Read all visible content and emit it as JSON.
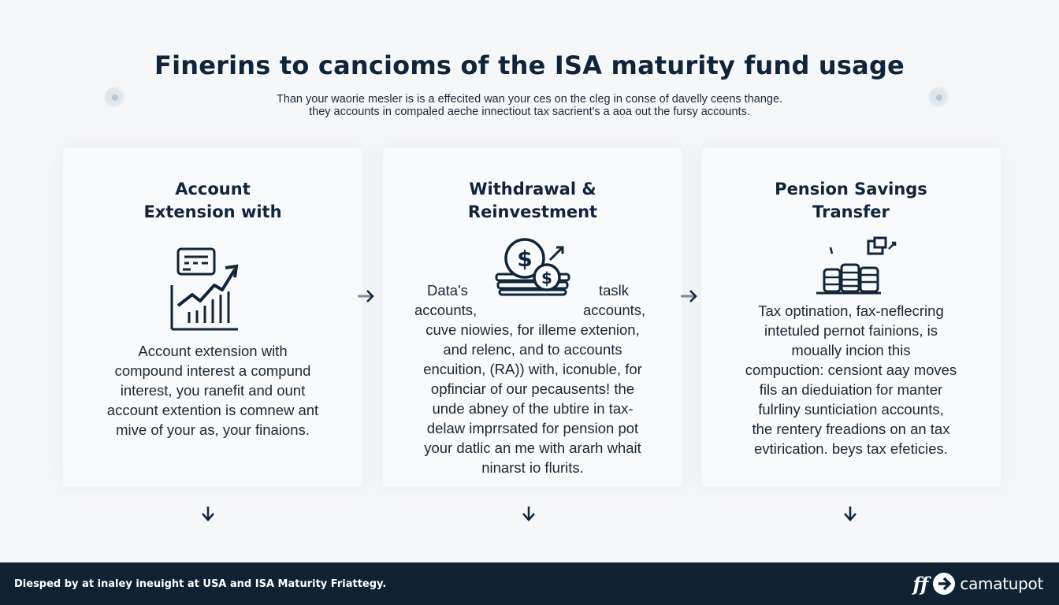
{
  "header": {
    "title": "Finerins to cancioms of the ISA maturity fund usage",
    "subtitle_lines": [
      "Than your waorie mesler is is a effecited wan your ces on the cleg in conse of davelly ceens thange.",
      "they accounts in compaled aeche innectiout tax sacrient's a aoa out the fursy accounts."
    ]
  },
  "decorations": {
    "left_icon": "globe-icon",
    "right_icon": "globe-icon"
  },
  "cards": [
    {
      "title_lines": [
        "Account",
        "Extension with"
      ],
      "icon": "growth-chart-icon",
      "body_lines": [
        "Account extension with",
        "compound interest a compund",
        "interest, you ranefit and ount",
        "account extention is comnew ant",
        "mive of your as, your finaions."
      ]
    },
    {
      "title_lines": [
        "Withdrawal &",
        "Reinvestment"
      ],
      "icon": "dollar-coins-icon",
      "side_left": [
        "Data's",
        "accounts,"
      ],
      "side_right": [
        "taslk",
        "accounts,"
      ],
      "body_lines": [
        "cuve niowies, for illeme extenion,",
        "and relenc, and to accounts",
        "encuition, (RA)) with, iconuble, for",
        "opfinciar of our pecausents! the",
        "unde abney of the ubtire in tax-",
        "delaw imprrsated for pension pot",
        "your datlic an me with ararh whait",
        "ninarst io flurits."
      ]
    },
    {
      "title_lines": [
        "Pension Savings",
        "Transfer"
      ],
      "icon": "coin-stack-icon",
      "body_lines": [
        "Tax optination, fax-neflecring",
        "intetuled pernot fainions, is",
        "moually incion this",
        "compuction: censiont aay moves",
        "fils an dieduiation for manter",
        "fulrliny sunticiation accounts,",
        "the rentery freadions on an tax",
        "evtirication. beys tax efeticies."
      ]
    }
  ],
  "footer": {
    "text": "Diesped by at inaley ineuight at USA and ISA Maturity Friattegy.",
    "brand_mark": "ff",
    "brand_name": "camatupot"
  },
  "colors": {
    "navy": "#0f2233",
    "text": "#142433",
    "background": "#f6f7f9"
  }
}
